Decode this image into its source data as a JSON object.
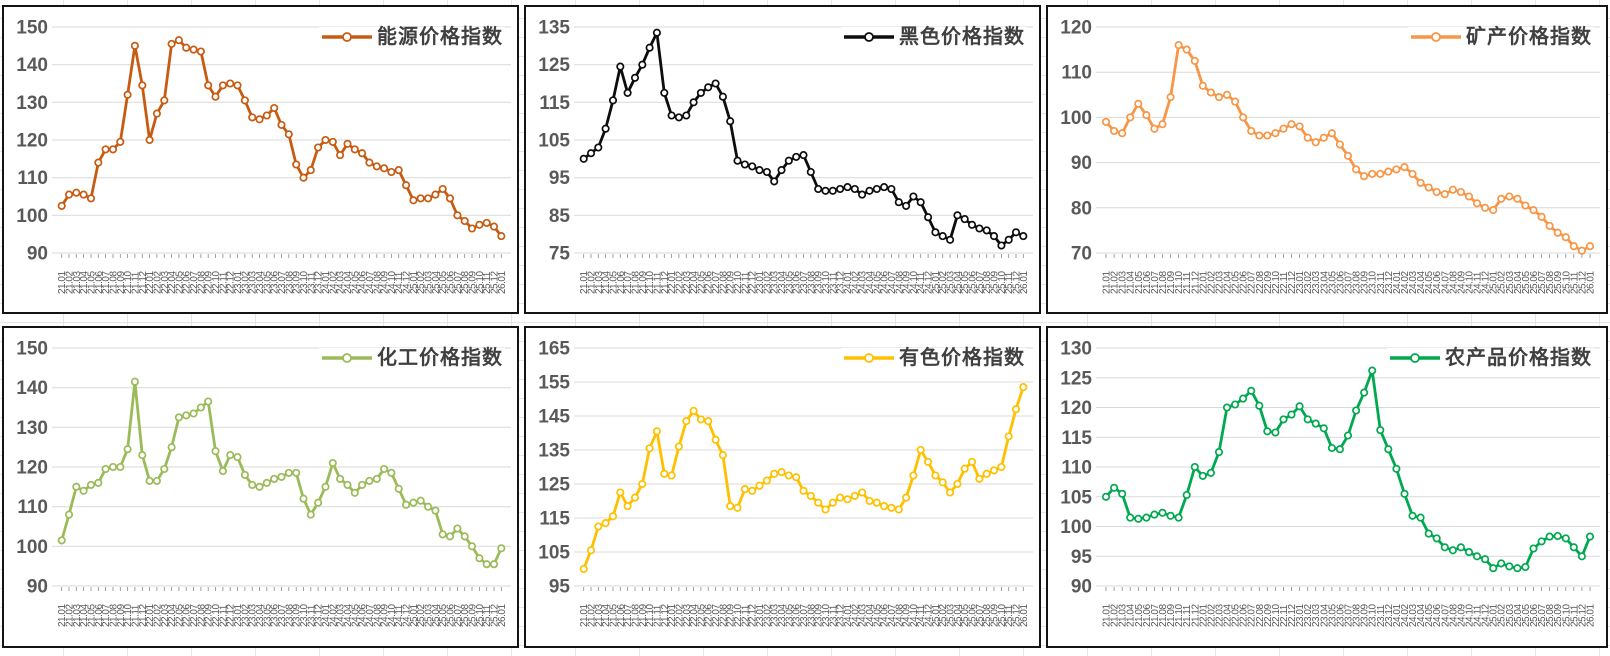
{
  "chart_data": {
    "type": "line",
    "grid": "horizontal",
    "legend_position": "top-right-inside",
    "marker": "circle-open",
    "x_label_rotation": -90,
    "categories": [
      "21.01",
      "21.02",
      "21.03",
      "21.04",
      "21.05",
      "21.06",
      "21.07",
      "21.08",
      "21.09",
      "21.10",
      "21.11",
      "21.12",
      "22.01",
      "22.02",
      "22.03",
      "22.04",
      "22.05",
      "22.06",
      "22.07",
      "22.08",
      "22.09",
      "22.10",
      "22.11",
      "22.12",
      "23.01",
      "23.02",
      "23.03",
      "23.04",
      "23.05",
      "23.06",
      "23.07",
      "23.08",
      "23.09",
      "23.10",
      "23.11",
      "23.12",
      "24.01",
      "24.02",
      "24.03",
      "24.04",
      "24.05",
      "24.06",
      "24.07",
      "24.08",
      "24.09",
      "24.10",
      "24.11",
      "24.12",
      "25.01",
      "25.02",
      "25.03",
      "25.04",
      "25.05",
      "25.06",
      "25.07",
      "25.08",
      "25.09",
      "25.10",
      "25.11",
      "25.12",
      "26.01"
    ],
    "charts": [
      {
        "title": "能源价格指数",
        "color": "#C75B12",
        "ylim": [
          90,
          150
        ],
        "ytick": 10,
        "values": [
          102.5,
          105.5,
          106,
          105.5,
          104.5,
          114,
          117.5,
          117.5,
          119.5,
          132,
          145,
          134.5,
          120,
          127,
          130.5,
          145.5,
          146.5,
          144.5,
          144,
          143.5,
          134.5,
          131.5,
          134.5,
          135,
          134.5,
          130.5,
          126,
          125.5,
          126.5,
          128.5,
          124,
          121.5,
          113.5,
          110,
          112,
          118,
          120,
          119.5,
          116,
          119,
          117.5,
          116.5,
          114,
          113,
          112.5,
          111.5,
          112,
          108,
          104,
          104.5,
          104.5,
          105.5,
          107,
          104.5,
          100,
          98.5,
          96.5,
          97.5,
          98,
          97,
          94.5
        ]
      },
      {
        "title": "黑色价格指数",
        "color": "#0D0D0D",
        "ylim": [
          75,
          135
        ],
        "ytick": 10,
        "values": [
          100,
          101.5,
          103,
          108,
          115.5,
          124.5,
          117.5,
          121.5,
          125,
          129.5,
          133.5,
          117.5,
          111.5,
          111,
          111.5,
          115,
          117.5,
          119,
          120,
          116.5,
          110,
          99.5,
          98.5,
          98,
          97,
          96.5,
          94,
          97,
          99.5,
          100.5,
          101,
          96.5,
          92,
          91.5,
          91.5,
          92,
          92.5,
          92,
          90.5,
          91.5,
          92,
          92.5,
          92,
          88.5,
          87.5,
          90,
          88.5,
          84.5,
          80.5,
          79.5,
          78.5,
          85,
          84,
          82.5,
          81.5,
          81,
          79.5,
          77,
          78.5,
          80.5,
          79.5
        ]
      },
      {
        "title": "矿产价格指数",
        "color": "#F79646",
        "ylim": [
          70,
          120
        ],
        "ytick": 10,
        "values": [
          99,
          97,
          96.5,
          100,
          103,
          100.5,
          97.5,
          98.5,
          104.5,
          116,
          115,
          112.5,
          107,
          105.5,
          104.5,
          105,
          103.5,
          100,
          97,
          96,
          96,
          96.5,
          97.5,
          98.5,
          98,
          95.5,
          94.5,
          95.5,
          96.5,
          94,
          91.5,
          88.5,
          87,
          87.5,
          87.5,
          88,
          88.5,
          89,
          87.5,
          85.5,
          84.5,
          83.5,
          83,
          84,
          83.5,
          82.5,
          81,
          80,
          79.5,
          82,
          82.5,
          82,
          80.5,
          79.5,
          78,
          76,
          74.5,
          73.5,
          71.5,
          70.5,
          71.5
        ]
      },
      {
        "title": "化工价格指数",
        "color": "#9BBB59",
        "ylim": [
          90,
          150
        ],
        "ytick": 10,
        "values": [
          101.5,
          108,
          115,
          114,
          115.5,
          116,
          119.5,
          120,
          120,
          124.5,
          141.5,
          123,
          116.5,
          116.5,
          119.5,
          125,
          132.5,
          133,
          133.5,
          135,
          136.5,
          124,
          119,
          123,
          122.5,
          118,
          115.5,
          115,
          116,
          117,
          117.5,
          118.5,
          118.5,
          112,
          108,
          111,
          115,
          121,
          117,
          115.5,
          113.5,
          115.5,
          116.5,
          117,
          119.5,
          118.5,
          114.5,
          110.5,
          111,
          111.5,
          110,
          109,
          103,
          102.5,
          104.5,
          102.5,
          100,
          97,
          95.5,
          95.5,
          99.5
        ]
      },
      {
        "title": "有色价格指数",
        "color": "#FFC000",
        "ylim": [
          95,
          165
        ],
        "ytick": 10,
        "values": [
          100,
          105.5,
          112.5,
          113.5,
          115.5,
          122.5,
          118.5,
          121,
          125,
          135.5,
          140.5,
          128,
          127.5,
          136,
          143.5,
          146.5,
          144,
          143.5,
          138,
          133.5,
          118.5,
          118,
          123.5,
          123,
          124.5,
          126,
          128,
          128.5,
          127.5,
          127,
          123,
          121.5,
          119.5,
          117.5,
          119.5,
          121,
          120.5,
          121.5,
          122.5,
          120,
          119.5,
          118.5,
          118,
          117.5,
          121,
          127.5,
          135,
          131.5,
          127.5,
          125.5,
          122.5,
          125,
          129.5,
          131.5,
          126.5,
          128,
          129,
          130,
          139,
          147,
          153.5
        ]
      },
      {
        "title": "农产品价格指数",
        "color": "#00A94F",
        "ylim": [
          90,
          130
        ],
        "ytick": 5,
        "values": [
          105,
          106.5,
          105.5,
          101.5,
          101.3,
          101.5,
          102,
          102.3,
          101.8,
          101.5,
          105.3,
          110,
          108.5,
          109,
          112.5,
          120,
          120.5,
          121.5,
          122.8,
          120.3,
          116,
          115.8,
          118,
          118.8,
          120.2,
          118,
          117.3,
          116.5,
          113.2,
          113,
          115.3,
          119.5,
          122.5,
          126.2,
          116.2,
          113,
          109.7,
          105.5,
          101.8,
          101.5,
          98.8,
          98,
          96.5,
          96,
          96.5,
          95.7,
          95,
          94.5,
          93,
          93.8,
          93.3,
          93,
          93.2,
          96.3,
          97.5,
          98.3,
          98.4,
          98,
          96.5,
          95,
          98.3
        ]
      }
    ]
  }
}
